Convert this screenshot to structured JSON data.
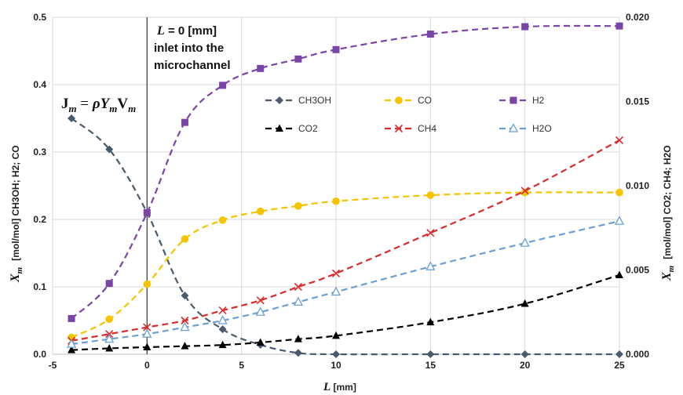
{
  "chart_data": {
    "type": "line",
    "x_axis": {
      "label_symbol": "L",
      "label_unit": " [mm]",
      "range": [
        -5,
        25
      ],
      "ticks": [
        "-5",
        "0",
        "5",
        "10",
        "15",
        "20",
        "25"
      ]
    },
    "y_left": {
      "label_symbol": "X",
      "label_sub": "m",
      "label_text": "[mol/mol] CH3OH; H2; CO",
      "range": [
        0,
        0.5
      ],
      "ticks": [
        "0.0",
        "0.1",
        "0.2",
        "0.3",
        "0.4",
        "0.5"
      ]
    },
    "y_right": {
      "label_symbol": "X",
      "label_sub": "m",
      "label_text": "[mol/mol] CO2; CH4; H2O",
      "range": [
        0,
        0.02
      ],
      "ticks": [
        "0.000",
        "0.005",
        "0.010",
        "0.015",
        "0.020"
      ]
    },
    "grid": true,
    "annotation": {
      "line1_symbol": "L",
      "line1_rest": " = 0 [mm]",
      "line2": "inlet into the",
      "line3": "microchannel",
      "x": 0
    },
    "equation": {
      "lhs": "J",
      "lhs_sub": "m",
      "eq": " = ",
      "rho": "ρ",
      "y": "Y",
      "y_sub": "m",
      "v": "V",
      "v_sub": "m"
    },
    "series": [
      {
        "name": "CH3OH",
        "axis": "left",
        "color": "#4a5a6e",
        "marker": "diamond",
        "x": [
          -4,
          -2,
          0,
          2,
          4,
          6,
          8,
          10,
          15,
          20,
          25
        ],
        "y": [
          0.35,
          0.304,
          0.21,
          0.087,
          0.037,
          0.014,
          0.002,
          0.0,
          0.0,
          0.0,
          0.0
        ]
      },
      {
        "name": "CO",
        "axis": "left",
        "color": "#f5c400",
        "marker": "circle",
        "x": [
          -4,
          -2,
          0,
          2,
          4,
          6,
          8,
          10,
          15,
          20,
          25
        ],
        "y": [
          0.025,
          0.052,
          0.104,
          0.171,
          0.199,
          0.212,
          0.22,
          0.227,
          0.236,
          0.24,
          0.24
        ]
      },
      {
        "name": "H2",
        "axis": "left",
        "color": "#7b45a8",
        "marker": "square",
        "x": [
          -4,
          -2,
          0,
          2,
          4,
          6,
          8,
          10,
          15,
          20,
          25
        ],
        "y": [
          0.053,
          0.105,
          0.21,
          0.344,
          0.399,
          0.424,
          0.438,
          0.452,
          0.475,
          0.486,
          0.487
        ]
      },
      {
        "name": "CO2",
        "axis": "right",
        "color": "#000000",
        "marker": "triangle",
        "x": [
          -4,
          -2,
          0,
          2,
          4,
          6,
          8,
          10,
          15,
          20,
          25
        ],
        "y": [
          0.00025,
          0.00035,
          0.00042,
          0.00048,
          0.00055,
          0.0007,
          0.0009,
          0.0011,
          0.0019,
          0.003,
          0.0047
        ]
      },
      {
        "name": "CH4",
        "axis": "right",
        "color": "#d92b2b",
        "marker": "x",
        "x": [
          -4,
          -2,
          0,
          2,
          4,
          6,
          8,
          10,
          15,
          20,
          25
        ],
        "y": [
          0.0008,
          0.0012,
          0.0016,
          0.002,
          0.0026,
          0.0032,
          0.004,
          0.0048,
          0.0072,
          0.0097,
          0.0127
        ]
      },
      {
        "name": "H2O",
        "axis": "right",
        "color": "#6aa0d4",
        "marker": "triangle-open",
        "x": [
          -4,
          -2,
          0,
          2,
          4,
          6,
          8,
          10,
          15,
          20,
          25
        ],
        "y": [
          0.0006,
          0.0009,
          0.0012,
          0.0016,
          0.002,
          0.0025,
          0.0031,
          0.0037,
          0.0052,
          0.0066,
          0.0079
        ]
      }
    ],
    "legend": {
      "placement": "upper-middle",
      "order": [
        "CH3OH",
        "CO",
        "H2",
        "CO2",
        "CH4",
        "H2O"
      ]
    }
  }
}
